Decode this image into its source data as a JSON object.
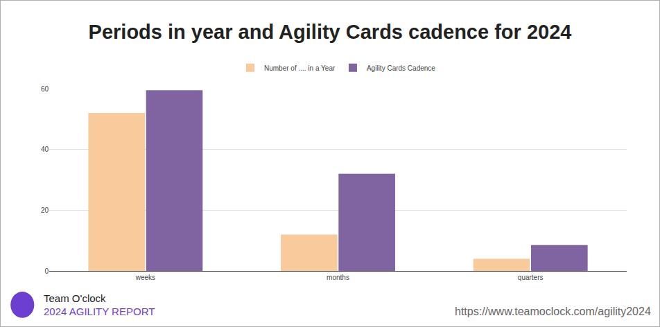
{
  "chart_data": {
    "type": "bar",
    "title": "Periods in year and Agility Cards cadence for 2024",
    "categories": [
      "weeks",
      "months",
      "quarters"
    ],
    "series": [
      {
        "name": "Number of .... in a Year",
        "color": "#f9cb9c",
        "values": [
          52,
          12,
          4
        ]
      },
      {
        "name": "Agility Cards Cadence",
        "color": "#8064a2",
        "values": [
          59.5,
          32,
          8.5
        ]
      }
    ],
    "ylim": [
      0,
      60
    ],
    "yticks": [
      0,
      20,
      40,
      60
    ],
    "grid": true,
    "legend": "top",
    "annotations": [
      "Team O'clock",
      "2024 AGILITY REPORT",
      "https://www.teamoclock.com/agility2024"
    ]
  }
}
